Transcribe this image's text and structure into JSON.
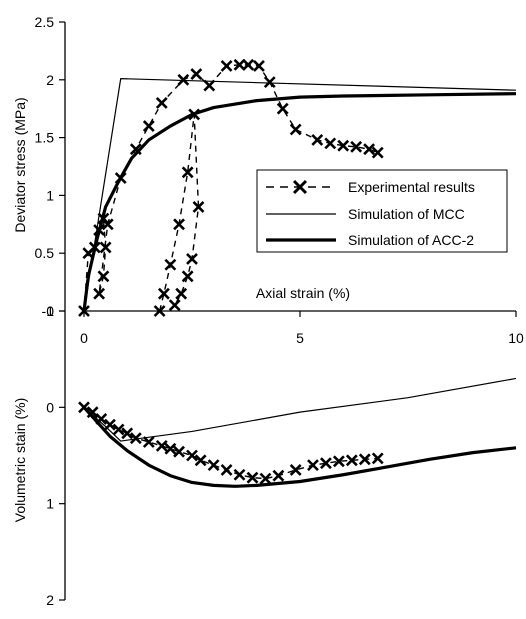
{
  "chart_data": [
    {
      "type": "line",
      "panel": "top",
      "xlabel": "Axial strain (%)",
      "ylabel": "Deviator stress (MPa)",
      "xlim": [
        0,
        10
      ],
      "ylim": [
        0,
        2.5
      ],
      "y_ticks": [
        "0",
        "0.5",
        "1",
        "1.5",
        "2",
        "2.5"
      ],
      "x_ticks": [
        "0",
        "5",
        "10"
      ],
      "legend": [
        "Experimental results",
        "Simulation of MCC",
        "Simulation of ACC-2"
      ],
      "series": [
        {
          "name": "Experimental results",
          "style": "dashed-x-markers",
          "x": [
            0.0,
            0.1,
            0.25,
            0.35,
            0.45,
            0.5,
            0.45,
            0.35,
            0.55,
            0.85,
            1.2,
            1.5,
            1.8,
            2.3,
            2.6,
            2.9,
            3.3,
            3.6,
            3.8,
            4.05,
            4.3,
            4.6,
            4.9,
            5.4,
            5.7,
            6.0,
            6.3,
            6.6,
            6.8
          ],
          "y": [
            0.0,
            0.5,
            0.55,
            0.7,
            0.8,
            0.55,
            0.3,
            0.15,
            0.75,
            1.15,
            1.4,
            1.6,
            1.8,
            2.0,
            2.05,
            1.95,
            2.12,
            2.13,
            2.13,
            2.12,
            1.98,
            1.75,
            1.57,
            1.48,
            1.45,
            1.43,
            1.42,
            1.4,
            1.37
          ]
        },
        {
          "name": "Experimental results (reload loop)",
          "style": "dashed-x-markers",
          "x": [
            1.75,
            1.85,
            2.0,
            2.2,
            2.4,
            2.55,
            2.65,
            2.5,
            2.4,
            2.25,
            2.1
          ],
          "y": [
            0.0,
            0.15,
            0.4,
            0.75,
            1.2,
            1.7,
            0.9,
            0.45,
            0.3,
            0.15,
            0.05
          ],
          "unlabeled": true
        },
        {
          "name": "Simulation of MCC",
          "style": "thin",
          "x": [
            0.0,
            0.85,
            10.0
          ],
          "y": [
            0.0,
            2.01,
            1.91
          ]
        },
        {
          "name": "Simulation of ACC-2",
          "style": "thick",
          "x": [
            0.0,
            0.1,
            0.3,
            0.5,
            0.8,
            1.1,
            1.5,
            2.0,
            2.5,
            3.0,
            4.0,
            5.0,
            6.0,
            8.0,
            10.0
          ],
          "y": [
            0.0,
            0.3,
            0.62,
            0.9,
            1.12,
            1.32,
            1.48,
            1.6,
            1.7,
            1.76,
            1.82,
            1.85,
            1.86,
            1.87,
            1.88
          ]
        }
      ]
    },
    {
      "type": "line",
      "panel": "bottom",
      "xlabel": "",
      "ylabel": "Volumetric stain (%)",
      "xlim": [
        0,
        10
      ],
      "ylim": [
        -1,
        2
      ],
      "y_ticks": [
        "-1",
        "0",
        "1",
        "2"
      ],
      "series": [
        {
          "name": "Experimental results",
          "style": "dashed-x-markers",
          "x": [
            0.0,
            0.2,
            0.4,
            0.6,
            0.8,
            1.0,
            1.2,
            1.5,
            1.8,
            2.0,
            2.2,
            2.5,
            2.7,
            3.0,
            3.3,
            3.6,
            3.9,
            4.2,
            4.5,
            4.9,
            5.3,
            5.6,
            5.9,
            6.2,
            6.5,
            6.8
          ],
          "y": [
            0.0,
            0.05,
            0.12,
            0.18,
            0.23,
            0.27,
            0.32,
            0.36,
            0.4,
            0.43,
            0.46,
            0.5,
            0.55,
            0.6,
            0.65,
            0.7,
            0.73,
            0.74,
            0.71,
            0.65,
            0.6,
            0.58,
            0.56,
            0.55,
            0.54,
            0.53
          ]
        },
        {
          "name": "Simulation of MCC",
          "style": "thin",
          "x": [
            0.0,
            0.5,
            0.85,
            2.5,
            5.0,
            7.5,
            10.0
          ],
          "y": [
            0.0,
            0.2,
            0.35,
            0.25,
            0.05,
            -0.1,
            -0.3
          ]
        },
        {
          "name": "Simulation of ACC-2",
          "style": "thick",
          "x": [
            0.0,
            0.3,
            0.6,
            1.0,
            1.5,
            2.0,
            2.5,
            3.0,
            3.5,
            4.0,
            5.0,
            6.0,
            7.0,
            8.0,
            9.0,
            10.0
          ],
          "y": [
            0.0,
            0.15,
            0.3,
            0.45,
            0.6,
            0.71,
            0.78,
            0.81,
            0.82,
            0.81,
            0.77,
            0.7,
            0.62,
            0.54,
            0.47,
            0.42
          ]
        }
      ]
    }
  ]
}
